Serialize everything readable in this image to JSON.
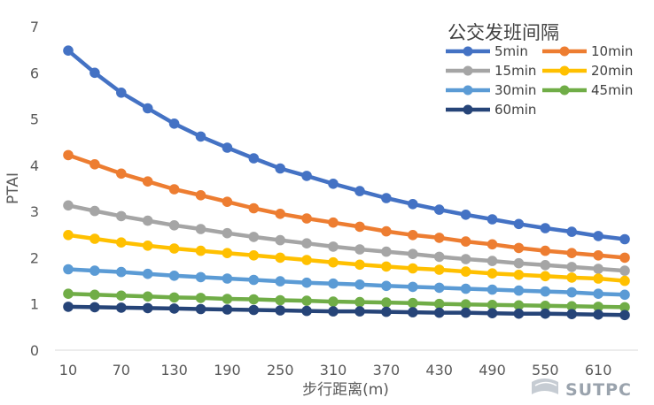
{
  "chart_data": {
    "type": "line",
    "title": "",
    "xlabel": "步行距离(m)",
    "ylabel": "PTAI",
    "ylim": [
      0,
      7
    ],
    "yticks": [
      0,
      1,
      2,
      3,
      4,
      5,
      6,
      7
    ],
    "x": [
      10,
      40,
      70,
      100,
      130,
      160,
      190,
      220,
      250,
      280,
      310,
      340,
      370,
      400,
      430,
      460,
      490,
      520,
      550,
      580,
      610,
      640
    ],
    "xtick_labels": [
      "10",
      "70",
      "130",
      "190",
      "250",
      "310",
      "370",
      "430",
      "490",
      "550",
      "610"
    ],
    "legend": {
      "title": "公交发班间隔",
      "position": "top-right"
    },
    "series": [
      {
        "name": "5min",
        "color": "#4472C4",
        "values": [
          6.48,
          6.0,
          5.57,
          5.23,
          4.9,
          4.62,
          4.38,
          4.15,
          3.93,
          3.77,
          3.6,
          3.44,
          3.29,
          3.16,
          3.04,
          2.93,
          2.83,
          2.73,
          2.64,
          2.56,
          2.47,
          2.4
        ]
      },
      {
        "name": "10min",
        "color": "#ED7D31",
        "values": [
          4.22,
          4.02,
          3.82,
          3.65,
          3.48,
          3.35,
          3.21,
          3.07,
          2.95,
          2.85,
          2.76,
          2.67,
          2.57,
          2.49,
          2.43,
          2.35,
          2.29,
          2.21,
          2.15,
          2.1,
          2.05,
          2.0
        ]
      },
      {
        "name": "15min",
        "color": "#A5A5A5",
        "values": [
          3.13,
          3.01,
          2.9,
          2.8,
          2.7,
          2.62,
          2.53,
          2.45,
          2.38,
          2.31,
          2.24,
          2.18,
          2.13,
          2.08,
          2.02,
          1.97,
          1.93,
          1.88,
          1.84,
          1.8,
          1.76,
          1.72
        ]
      },
      {
        "name": "20min",
        "color": "#FFC000",
        "values": [
          2.49,
          2.41,
          2.33,
          2.26,
          2.2,
          2.15,
          2.1,
          2.05,
          2.0,
          1.95,
          1.9,
          1.85,
          1.81,
          1.77,
          1.74,
          1.7,
          1.66,
          1.63,
          1.6,
          1.57,
          1.55,
          1.5
        ]
      },
      {
        "name": "30min",
        "color": "#5B9BD5",
        "values": [
          1.75,
          1.72,
          1.69,
          1.65,
          1.61,
          1.58,
          1.55,
          1.52,
          1.49,
          1.46,
          1.44,
          1.42,
          1.39,
          1.37,
          1.35,
          1.33,
          1.31,
          1.29,
          1.27,
          1.25,
          1.22,
          1.2
        ]
      },
      {
        "name": "45min",
        "color": "#70AD47",
        "values": [
          1.22,
          1.2,
          1.18,
          1.16,
          1.14,
          1.13,
          1.11,
          1.1,
          1.08,
          1.07,
          1.05,
          1.04,
          1.03,
          1.02,
          1.0,
          0.99,
          0.98,
          0.97,
          0.96,
          0.95,
          0.94,
          0.93
        ]
      },
      {
        "name": "60min",
        "color": "#264478",
        "values": [
          0.94,
          0.93,
          0.92,
          0.91,
          0.9,
          0.89,
          0.88,
          0.87,
          0.86,
          0.85,
          0.84,
          0.84,
          0.83,
          0.82,
          0.81,
          0.81,
          0.8,
          0.79,
          0.79,
          0.78,
          0.77,
          0.76
        ]
      }
    ]
  },
  "watermark": {
    "text": "SUTPC",
    "icon": "sutpc-logo-icon"
  }
}
